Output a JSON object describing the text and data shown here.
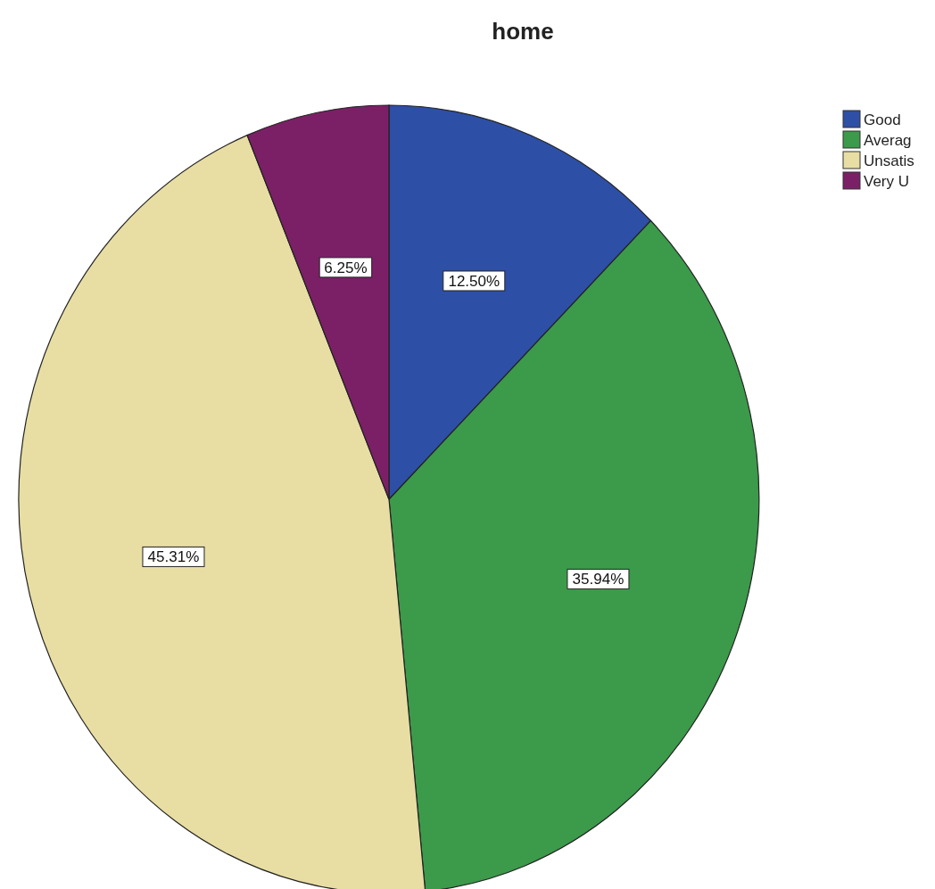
{
  "chart_data": {
    "type": "pie",
    "title": "home",
    "categories": [
      "Good",
      "Averag",
      "Unsatis",
      "Very U"
    ],
    "values": [
      12.5,
      35.94,
      45.31,
      6.25
    ],
    "colors": [
      "#2e4fa6",
      "#3c9a4b",
      "#e8dea3",
      "#7b2066"
    ],
    "value_labels": [
      "12.50%",
      "35.94%",
      "45.31%",
      "6.25%"
    ],
    "legend": "top right"
  }
}
